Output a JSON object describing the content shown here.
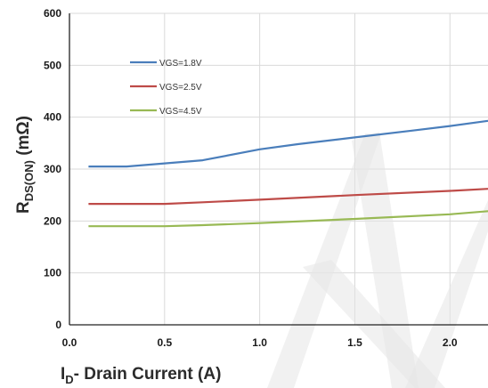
{
  "chart_data": {
    "type": "line",
    "title": "",
    "xlabel": {
      "main": "I",
      "sub": "D",
      "rest": "- Drain Current (A)"
    },
    "ylabel": {
      "main": "R",
      "sub": "DS(ON)",
      "rest": " (mΩ)"
    },
    "xlim": [
      0,
      2.2
    ],
    "ylim": [
      0,
      600
    ],
    "xticks": [
      0,
      0.5,
      1.0,
      1.5,
      2.0
    ],
    "xtick_labels": [
      "0.0",
      "0.5",
      "1.0",
      "1.5",
      "2.0"
    ],
    "yticks": [
      0,
      100,
      200,
      300,
      400,
      500,
      600
    ],
    "ytick_labels": [
      "0",
      "100",
      "200",
      "300",
      "400",
      "500",
      "600"
    ],
    "grid": true,
    "legend_position": "top-left",
    "series": [
      {
        "name": "VGS=1.8V",
        "color": "#4a7ebb",
        "x": [
          0.1,
          0.3,
          0.5,
          0.7,
          1.0,
          1.2,
          1.5,
          1.8,
          2.0,
          2.2
        ],
        "y": [
          305,
          305,
          311,
          317,
          338,
          348,
          361,
          374,
          383,
          393
        ]
      },
      {
        "name": "VGS=2.5V",
        "color": "#be4b48",
        "x": [
          0.1,
          0.3,
          0.5,
          0.7,
          1.0,
          1.5,
          2.0,
          2.2
        ],
        "y": [
          233,
          233,
          233,
          236,
          241,
          250,
          258,
          262
        ]
      },
      {
        "name": "VGS=4.5V",
        "color": "#98b954",
        "x": [
          0.1,
          0.3,
          0.5,
          0.7,
          1.0,
          1.5,
          2.0,
          2.2
        ],
        "y": [
          190,
          190,
          190,
          192,
          196,
          204,
          213,
          219
        ]
      }
    ]
  }
}
